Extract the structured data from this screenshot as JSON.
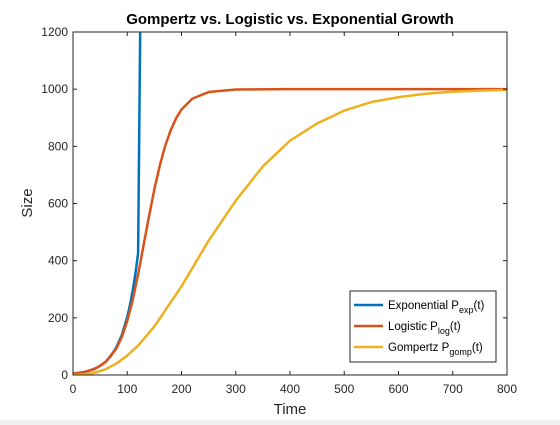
{
  "chart_data": {
    "type": "line",
    "title": "Gompertz vs. Logistic vs. Exponential Growth",
    "xlabel": "Time",
    "ylabel": "Size",
    "xlim": [
      0,
      800
    ],
    "ylim": [
      0,
      1200
    ],
    "xticks": [
      0,
      100,
      200,
      300,
      400,
      500,
      600,
      700,
      800
    ],
    "yticks": [
      0,
      200,
      400,
      600,
      800,
      1000,
      1200
    ],
    "grid": false,
    "legend_location": "bottom-right",
    "series": [
      {
        "name": "Exponential P",
        "sub": "exp",
        "suffix": "(t)",
        "color": "#0072BD",
        "x": [
          0,
          10,
          20,
          30,
          40,
          50,
          60,
          70,
          80,
          90,
          100,
          105,
          110,
          115,
          120,
          124
        ],
        "y": [
          5,
          7,
          10,
          15,
          22,
          32,
          46,
          67,
          97,
          140,
          203,
          245,
          294,
          354,
          426,
          1240
        ]
      },
      {
        "name": "Logistic P",
        "sub": "log",
        "suffix": "(t)",
        "color": "#D95319",
        "x": [
          0,
          20,
          40,
          60,
          80,
          90,
          100,
          110,
          120,
          130,
          140,
          150,
          160,
          170,
          180,
          190,
          200,
          220,
          250,
          300,
          400,
          500,
          600,
          700,
          800
        ],
        "y": [
          5,
          10,
          21,
          45,
          93,
          133,
          189,
          262,
          352,
          453,
          554,
          650,
          733,
          802,
          856,
          898,
          929,
          967,
          990,
          999,
          1000,
          1000,
          1000,
          1000,
          1000
        ]
      },
      {
        "name": "Gompertz P",
        "sub": "gomp",
        "suffix": "(t)",
        "color": "#EDB120",
        "x": [
          0,
          20,
          40,
          60,
          80,
          100,
          120,
          150,
          200,
          250,
          300,
          350,
          400,
          450,
          500,
          550,
          600,
          650,
          700,
          750,
          800
        ],
        "y": [
          0,
          2,
          8,
          20,
          40,
          68,
          103,
          170,
          310,
          470,
          610,
          730,
          820,
          880,
          925,
          955,
          972,
          984,
          991,
          995,
          997
        ]
      }
    ]
  }
}
